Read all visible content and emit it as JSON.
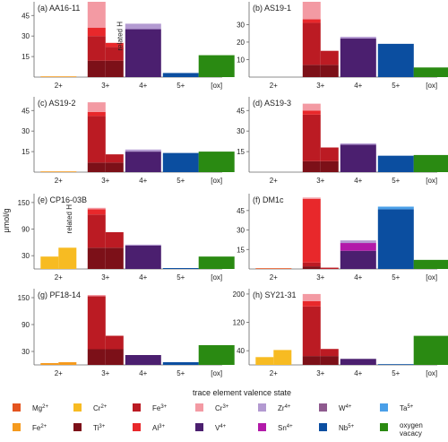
{
  "figure": {
    "ylabel": "μmol/g",
    "xlabel": "trace element valence state"
  },
  "colors": {
    "Mg2+": "#e4541f",
    "Fe2+": "#f59a1e",
    "Cr2+": "#f7bb22",
    "Ti3+": "#7c1018",
    "Fe3+": "#bb1b23",
    "Al3+": "#e8282b",
    "Cr3+": "#f39aa3",
    "V4+": "#4b1f6f",
    "Zr4+": "#b39ad1",
    "Sn4+": "#b21aa9",
    "W4+": "#8e5a8e",
    "Nb5+": "#0b4ea0",
    "Ta5+": "#4a9fe8",
    "ox": "#2a8a12"
  },
  "legend": [
    {
      "key": "Mg2+",
      "ion": "Mg",
      "charge": "2+"
    },
    {
      "key": "Cr2+",
      "ion": "Cr",
      "charge": "2+"
    },
    {
      "key": "Fe3+",
      "ion": "Fe",
      "charge": "3+"
    },
    {
      "key": "Cr3+",
      "ion": "Cr",
      "charge": "3+"
    },
    {
      "key": "Zr4+",
      "ion": "Zr",
      "charge": "4+"
    },
    {
      "key": "W4+",
      "ion": "W",
      "charge": "4+"
    },
    {
      "key": "Ta5+",
      "ion": "Ta",
      "charge": "5+"
    },
    {
      "key": "Fe2+",
      "ion": "Fe",
      "charge": "2+"
    },
    {
      "key": "Ti3+",
      "ion": "Ti",
      "charge": "3+"
    },
    {
      "key": "Al3+",
      "ion": "Al",
      "charge": "3+"
    },
    {
      "key": "V4+",
      "ion": "V",
      "charge": "4+"
    },
    {
      "key": "Sn4+",
      "ion": "Sn",
      "charge": "4+"
    },
    {
      "key": "Nb5+",
      "ion": "Nb",
      "charge": "5+"
    },
    {
      "key": "ox",
      "ion": "oxygen vacacy",
      "charge": ""
    }
  ],
  "chart_data": [
    {
      "type": "bar",
      "title": "(a) AA16-11",
      "categories": [
        "2+",
        "3+",
        "4+",
        "5+",
        "[ox]"
      ],
      "yticks": [
        15,
        30,
        45
      ],
      "ylim": [
        0,
        55
      ],
      "annotation": "related H",
      "bars": [
        {
          "category": "2+",
          "half": "both",
          "stack": [
            [
              "Fe2+",
              0.5
            ]
          ]
        },
        {
          "category": "3+",
          "half": "left",
          "stack": [
            [
              "Ti3+",
              12
            ],
            [
              "Fe3+",
              18
            ],
            [
              "Al3+",
              6
            ],
            [
              "Cr3+",
              19
            ]
          ]
        },
        {
          "category": "3+",
          "half": "right",
          "stack": [
            [
              "Ti3+",
              12
            ],
            [
              "Fe3+",
              10
            ],
            [
              "Al3+",
              3
            ]
          ]
        },
        {
          "category": "4+",
          "half": "both",
          "stack": [
            [
              "V4+",
              35
            ],
            [
              "Zr4+",
              4
            ]
          ]
        },
        {
          "category": "5+",
          "half": "both",
          "stack": [
            [
              "Nb5+",
              3
            ]
          ]
        },
        {
          "category": "[ox]",
          "half": "both",
          "stack": [
            [
              "ox",
              16
            ]
          ]
        }
      ]
    },
    {
      "type": "bar",
      "title": "(b) AS19-1",
      "categories": [
        "2+",
        "3+",
        "4+",
        "5+",
        "[ox]"
      ],
      "yticks": [
        10,
        20,
        30
      ],
      "ylim": [
        0,
        43
      ],
      "bars": [
        {
          "category": "3+",
          "half": "left",
          "stack": [
            [
              "Ti3+",
              7
            ],
            [
              "Fe3+",
              24
            ],
            [
              "Al3+",
              2
            ],
            [
              "Cr3+",
              10
            ]
          ]
        },
        {
          "category": "3+",
          "half": "right",
          "stack": [
            [
              "Ti3+",
              7
            ],
            [
              "Fe3+",
              8
            ]
          ]
        },
        {
          "category": "4+",
          "half": "both",
          "stack": [
            [
              "V4+",
              22
            ],
            [
              "Zr4+",
              1
            ]
          ]
        },
        {
          "category": "5+",
          "half": "both",
          "stack": [
            [
              "Nb5+",
              19
            ]
          ]
        },
        {
          "category": "[ox]",
          "half": "both",
          "stack": [
            [
              "ox",
              5.5
            ]
          ]
        }
      ]
    },
    {
      "type": "bar",
      "title": "(c) AS19-2",
      "categories": [
        "2+",
        "3+",
        "4+",
        "5+",
        "[ox]"
      ],
      "yticks": [
        15,
        30,
        45
      ],
      "ylim": [
        0,
        55
      ],
      "bars": [
        {
          "category": "2+",
          "half": "both",
          "stack": [
            [
              "Fe2+",
              0.5
            ]
          ]
        },
        {
          "category": "3+",
          "half": "left",
          "stack": [
            [
              "Ti3+",
              7
            ],
            [
              "Fe3+",
              34
            ],
            [
              "Al3+",
              3
            ],
            [
              "Cr3+",
              7
            ]
          ]
        },
        {
          "category": "3+",
          "half": "right",
          "stack": [
            [
              "Ti3+",
              7
            ],
            [
              "Fe3+",
              6
            ]
          ]
        },
        {
          "category": "4+",
          "half": "both",
          "stack": [
            [
              "V4+",
              15
            ],
            [
              "Zr4+",
              1.5
            ]
          ]
        },
        {
          "category": "5+",
          "half": "both",
          "stack": [
            [
              "Nb5+",
              14
            ]
          ]
        },
        {
          "category": "[ox]",
          "half": "both",
          "stack": [
            [
              "ox",
              15
            ]
          ]
        }
      ]
    },
    {
      "type": "bar",
      "title": "(d) AS19-3",
      "categories": [
        "2+",
        "3+",
        "4+",
        "5+",
        "[ox]"
      ],
      "yticks": [
        15,
        30,
        45
      ],
      "ylim": [
        0,
        55
      ],
      "bars": [
        {
          "category": "3+",
          "half": "left",
          "stack": [
            [
              "Ti3+",
              8
            ],
            [
              "Fe3+",
              34
            ],
            [
              "Al3+",
              3
            ],
            [
              "Cr3+",
              5
            ]
          ]
        },
        {
          "category": "3+",
          "half": "right",
          "stack": [
            [
              "Ti3+",
              8
            ],
            [
              "Fe3+",
              10
            ]
          ]
        },
        {
          "category": "4+",
          "half": "both",
          "stack": [
            [
              "V4+",
              20
            ],
            [
              "Zr4+",
              1
            ]
          ]
        },
        {
          "category": "5+",
          "half": "both",
          "stack": [
            [
              "Nb5+",
              12
            ]
          ]
        },
        {
          "category": "[ox]",
          "half": "both",
          "stack": [
            [
              "ox",
              12.5
            ]
          ]
        }
      ]
    },
    {
      "type": "bar",
      "title": "(e) CP16-03B",
      "categories": [
        "2+",
        "3+",
        "4+",
        "5+",
        "[ox]"
      ],
      "yticks": [
        30,
        90,
        150
      ],
      "ylim": [
        0,
        170
      ],
      "annotation": "related H",
      "bars": [
        {
          "category": "2+",
          "half": "left",
          "stack": [
            [
              "Cr2+",
              28
            ]
          ]
        },
        {
          "category": "2+",
          "half": "right",
          "stack": [
            [
              "Cr2+",
              48
            ]
          ]
        },
        {
          "category": "3+",
          "half": "left",
          "stack": [
            [
              "Ti3+",
              48
            ],
            [
              "Fe3+",
              75
            ],
            [
              "Al3+",
              12
            ],
            [
              "Cr3+",
              3
            ]
          ]
        },
        {
          "category": "3+",
          "half": "right",
          "stack": [
            [
              "Ti3+",
              48
            ],
            [
              "Fe3+",
              35
            ]
          ]
        },
        {
          "category": "4+",
          "half": "both",
          "stack": [
            [
              "V4+",
              53
            ],
            [
              "Zr4+",
              2
            ]
          ]
        },
        {
          "category": "5+",
          "half": "both",
          "stack": [
            [
              "Nb5+",
              2
            ]
          ]
        },
        {
          "category": "[ox]",
          "half": "both",
          "stack": [
            [
              "ox",
              28
            ]
          ]
        }
      ]
    },
    {
      "type": "bar",
      "title": "(f) DM1c",
      "categories": [
        "2+",
        "3+",
        "4+",
        "5+",
        "[ox]"
      ],
      "yticks": [
        15,
        30,
        45
      ],
      "ylim": [
        0,
        58
      ],
      "bars": [
        {
          "category": "2+",
          "half": "both",
          "stack": [
            [
              "Mg2+",
              0.5
            ]
          ]
        },
        {
          "category": "3+",
          "half": "left",
          "stack": [
            [
              "Ti3+",
              2
            ],
            [
              "Fe3+",
              3
            ],
            [
              "Al3+",
              49
            ],
            [
              "Cr3+",
              1
            ]
          ]
        },
        {
          "category": "3+",
          "half": "right",
          "stack": [
            [
              "Fe3+",
              1
            ]
          ]
        },
        {
          "category": "4+",
          "half": "both",
          "stack": [
            [
              "V4+",
              14
            ],
            [
              "Sn4+",
              6
            ],
            [
              "Zr4+",
              2
            ]
          ]
        },
        {
          "category": "5+",
          "half": "both",
          "stack": [
            [
              "Nb5+",
              46
            ],
            [
              "Ta5+",
              2
            ]
          ]
        },
        {
          "category": "[ox]",
          "half": "both",
          "stack": [
            [
              "ox",
              7
            ]
          ]
        }
      ]
    },
    {
      "type": "bar",
      "title": "(g) PF18-14",
      "categories": [
        "2+",
        "3+",
        "4+",
        "5+",
        "[ox]"
      ],
      "yticks": [
        30,
        90,
        150
      ],
      "ylim": [
        0,
        170
      ],
      "bars": [
        {
          "category": "2+",
          "half": "left",
          "stack": [
            [
              "Fe2+",
              4
            ]
          ]
        },
        {
          "category": "2+",
          "half": "right",
          "stack": [
            [
              "Fe2+",
              6
            ]
          ]
        },
        {
          "category": "3+",
          "half": "left",
          "stack": [
            [
              "Ti3+",
              35
            ],
            [
              "Fe3+",
              118
            ],
            [
              "Cr3+",
              3
            ]
          ]
        },
        {
          "category": "3+",
          "half": "right",
          "stack": [
            [
              "Ti3+",
              35
            ],
            [
              "Fe3+",
              30
            ]
          ]
        },
        {
          "category": "4+",
          "half": "both",
          "stack": [
            [
              "V4+",
              22
            ]
          ]
        },
        {
          "category": "5+",
          "half": "both",
          "stack": [
            [
              "Nb5+",
              6
            ]
          ]
        },
        {
          "category": "[ox]",
          "half": "both",
          "stack": [
            [
              "ox",
              44
            ]
          ]
        }
      ]
    },
    {
      "type": "bar",
      "title": "(h) SY21-31",
      "categories": [
        "2+",
        "3+",
        "4+",
        "5+",
        "[ox]"
      ],
      "yticks": [
        40,
        120,
        200
      ],
      "ylim": [
        0,
        215
      ],
      "bars": [
        {
          "category": "2+",
          "half": "left",
          "stack": [
            [
              "Cr2+",
              22
            ]
          ]
        },
        {
          "category": "2+",
          "half": "right",
          "stack": [
            [
              "Cr2+",
              42
            ]
          ]
        },
        {
          "category": "3+",
          "half": "left",
          "stack": [
            [
              "Ti3+",
              25
            ],
            [
              "Fe3+",
              140
            ],
            [
              "Al3+",
              15
            ],
            [
              "Cr3+",
              20
            ]
          ]
        },
        {
          "category": "3+",
          "half": "right",
          "stack": [
            [
              "Ti3+",
              25
            ],
            [
              "Fe3+",
              20
            ]
          ]
        },
        {
          "category": "4+",
          "half": "both",
          "stack": [
            [
              "V4+",
              17
            ]
          ]
        },
        {
          "category": "5+",
          "half": "both",
          "stack": [
            [
              "Nb5+",
              1
            ]
          ]
        },
        {
          "category": "[ox]",
          "half": "both",
          "stack": [
            [
              "ox",
              82
            ]
          ]
        }
      ]
    }
  ]
}
